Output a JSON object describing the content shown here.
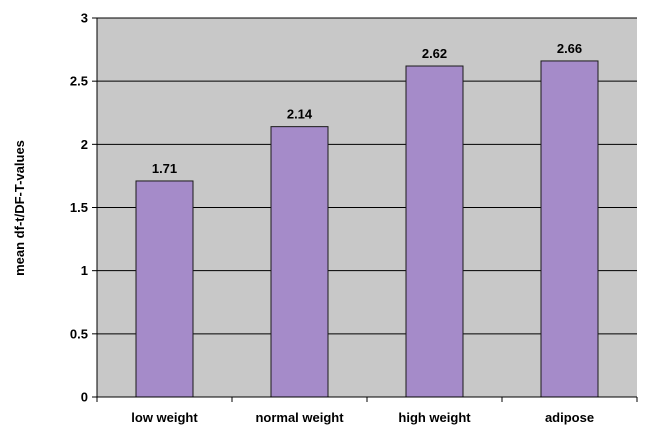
{
  "chart_data": {
    "type": "bar",
    "title": "",
    "xlabel": "",
    "ylabel": "mean df-t/DF-T-values",
    "categories": [
      "low weight",
      "normal weight",
      "high weight",
      "adipose"
    ],
    "values": [
      1.71,
      2.14,
      2.62,
      2.66
    ],
    "data_labels": [
      "1.71",
      "2.14",
      "2.62",
      "2.66"
    ],
    "ylim": [
      0,
      3
    ],
    "yticks": [
      0,
      0.5,
      1,
      1.5,
      2,
      2.5,
      3
    ],
    "ytick_labels": [
      "0",
      "0.5",
      "1",
      "1.5",
      "2",
      "2.5",
      "3"
    ],
    "grid": true,
    "legend": "none",
    "colors": {
      "bar_fill": "#a58bc9",
      "bar_stroke": "#1a1a1a",
      "plot_background": "#c8c8c8",
      "gridline": "#000000"
    }
  }
}
